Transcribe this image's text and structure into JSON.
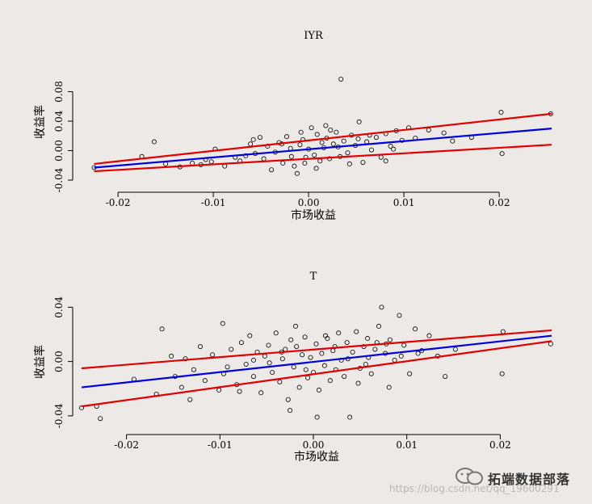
{
  "watermark": {
    "brand": "拓端数据部落",
    "url": "https://blog.csdn.net/qq_19600291"
  },
  "colors": {
    "background": "#ece9e6",
    "fit_line": "#0000dd",
    "band_line": "#e00000",
    "points": "#000000"
  },
  "chart_data": [
    {
      "type": "scatter",
      "title": "IYR",
      "xlabel": "市场收益",
      "ylabel": "收益率",
      "xlim": [
        -0.0245,
        0.0255
      ],
      "ylim": [
        -0.04,
        0.12
      ],
      "xticks": [
        -0.02,
        -0.01,
        0.0,
        0.01,
        0.02
      ],
      "xtick_labels": [
        "-0.02",
        "-0.01",
        "0.00",
        "0.01",
        "0.02"
      ],
      "yticks": [
        -0.04,
        0.0,
        0.04,
        0.08
      ],
      "ytick_labels": [
        "-0.04",
        "0.00",
        "0.04",
        "0.08"
      ],
      "series": [
        {
          "kind": "points",
          "points": [
            [
              -0.0225,
              -0.023
            ],
            [
              -0.0175,
              -0.008
            ],
            [
              -0.0162,
              0.012
            ],
            [
              -0.015,
              -0.018
            ],
            [
              -0.0135,
              -0.022
            ],
            [
              -0.0122,
              -0.017
            ],
            [
              -0.0113,
              -0.019
            ],
            [
              -0.0102,
              -0.015
            ],
            [
              -0.0098,
              0.002
            ],
            [
              -0.0088,
              -0.021
            ],
            [
              -0.0077,
              -0.009
            ],
            [
              -0.0072,
              -0.014
            ],
            [
              -0.0066,
              -0.007
            ],
            [
              -0.0061,
              0.009
            ],
            [
              -0.0056,
              -0.004
            ],
            [
              -0.0051,
              0.018
            ],
            [
              -0.0047,
              -0.011
            ],
            [
              -0.0043,
              0.006
            ],
            [
              -0.0039,
              -0.026
            ],
            [
              -0.0035,
              -0.002
            ],
            [
              -0.0031,
              0.011
            ],
            [
              -0.0027,
              -0.017
            ],
            [
              -0.0023,
              0.019
            ],
            [
              -0.0019,
              0.003
            ],
            [
              -0.0015,
              -0.021
            ],
            [
              -0.0012,
              -0.031
            ],
            [
              -0.0009,
              0.008
            ],
            [
              -0.0006,
              0.015
            ],
            [
              -0.0003,
              -0.009
            ],
            [
              0.0,
              0.002
            ],
            [
              0.0003,
              0.031
            ],
            [
              0.0006,
              -0.006
            ],
            [
              0.0009,
              0.022
            ],
            [
              0.0012,
              -0.014
            ],
            [
              0.0016,
              0.004
            ],
            [
              0.0019,
              0.017
            ],
            [
              0.0022,
              -0.011
            ],
            [
              0.0026,
              0.009
            ],
            [
              0.0029,
              0.025
            ],
            [
              0.0033,
              -0.008
            ],
            [
              0.0034,
              0.097
            ],
            [
              0.0037,
              0.013
            ],
            [
              0.0041,
              -0.003
            ],
            [
              0.0045,
              0.021
            ],
            [
              0.0049,
              0.007
            ],
            [
              0.0053,
              0.039
            ],
            [
              0.0057,
              -0.016
            ],
            [
              0.0061,
              0.012
            ],
            [
              0.0066,
              0.001
            ],
            [
              0.0071,
              0.018
            ],
            [
              0.0076,
              -0.009
            ],
            [
              0.0081,
              0.023
            ],
            [
              0.0086,
              0.006
            ],
            [
              0.0092,
              0.027
            ],
            [
              0.0098,
              0.014
            ],
            [
              0.0105,
              0.031
            ],
            [
              0.0112,
              0.017
            ],
            [
              0.0126,
              0.028
            ],
            [
              0.0142,
              0.024
            ],
            [
              0.0151,
              0.013
            ],
            [
              0.0171,
              0.018
            ],
            [
              0.0202,
              0.052
            ],
            [
              0.0203,
              -0.004
            ],
            [
              0.0254,
              0.05
            ],
            [
              -0.0058,
              0.015
            ],
            [
              -0.0018,
              -0.008
            ],
            [
              0.0008,
              -0.024
            ],
            [
              0.0023,
              0.028
            ],
            [
              0.0043,
              -0.018
            ],
            [
              0.0081,
              -0.014
            ],
            [
              -0.0028,
              0.009
            ],
            [
              -0.0008,
              0.025
            ],
            [
              0.0014,
              0.011
            ],
            [
              0.0031,
              0.005
            ],
            [
              0.0052,
              0.016
            ],
            [
              -0.0108,
              -0.012
            ],
            [
              -0.0004,
              -0.017
            ],
            [
              0.0018,
              0.034
            ],
            [
              0.0064,
              0.021
            ],
            [
              0.0089,
              0.002
            ]
          ]
        },
        {
          "kind": "fit",
          "from": [
            -0.0225,
            -0.023
          ],
          "to": [
            0.0255,
            0.03
          ]
        },
        {
          "kind": "upper",
          "from": [
            -0.0225,
            -0.018
          ],
          "to": [
            0.0255,
            0.05
          ]
        },
        {
          "kind": "lower",
          "from": [
            -0.0225,
            -0.028
          ],
          "to": [
            0.0255,
            0.008
          ]
        }
      ]
    },
    {
      "type": "scatter",
      "title": "T",
      "xlabel": "市场收益",
      "ylabel": "收益率",
      "xlim": [
        -0.0255,
        0.0255
      ],
      "ylim": [
        -0.049,
        0.042
      ],
      "xticks": [
        -0.02,
        -0.01,
        0.0,
        0.01,
        0.02
      ],
      "xtick_labels": [
        "-0.02",
        "-0.01",
        "0.00",
        "0.01",
        "0.02"
      ],
      "yticks": [
        -0.04,
        0.0,
        0.04
      ],
      "ytick_labels": [
        "-0.04",
        "0.00",
        "0.04"
      ],
      "series": [
        {
          "kind": "points",
          "points": [
            [
              -0.0248,
              -0.034
            ],
            [
              -0.0232,
              -0.033
            ],
            [
              -0.0228,
              -0.042
            ],
            [
              -0.0192,
              -0.013
            ],
            [
              -0.0162,
              0.024
            ],
            [
              -0.0148,
              -0.011
            ],
            [
              -0.0141,
              -0.019
            ],
            [
              -0.0137,
              0.002
            ],
            [
              -0.0132,
              -0.028
            ],
            [
              -0.0128,
              -0.006
            ],
            [
              -0.0121,
              0.011
            ],
            [
              -0.0116,
              -0.014
            ],
            [
              -0.0108,
              0.005
            ],
            [
              -0.0101,
              -0.021
            ],
            [
              -0.0097,
              0.028
            ],
            [
              -0.0092,
              -0.004
            ],
            [
              -0.0088,
              0.009
            ],
            [
              -0.0082,
              -0.017
            ],
            [
              -0.0077,
              0.014
            ],
            [
              -0.0072,
              -0.002
            ],
            [
              -0.0068,
              0.019
            ],
            [
              -0.0064,
              -0.011
            ],
            [
              -0.006,
              0.007
            ],
            [
              -0.0056,
              -0.023
            ],
            [
              -0.0052,
              0.004
            ],
            [
              -0.0048,
              0.012
            ],
            [
              -0.0044,
              -0.008
            ],
            [
              -0.004,
              0.021
            ],
            [
              -0.0036,
              -0.015
            ],
            [
              -0.0033,
              0.002
            ],
            [
              -0.003,
              0.009
            ],
            [
              -0.0027,
              -0.028
            ],
            [
              -0.0024,
              0.016
            ],
            [
              -0.0021,
              -0.004
            ],
            [
              -0.0018,
              0.011
            ],
            [
              -0.0015,
              -0.019
            ],
            [
              -0.0012,
              0.005
            ],
            [
              -0.0009,
              0.018
            ],
            [
              -0.0006,
              -0.012
            ],
            [
              -0.0003,
              0.003
            ],
            [
              0.0,
              -0.008
            ],
            [
              0.0003,
              0.013
            ],
            [
              0.0006,
              -0.021
            ],
            [
              0.0009,
              0.006
            ],
            [
              0.0012,
              -0.003
            ],
            [
              0.0015,
              0.017
            ],
            [
              0.0018,
              -0.014
            ],
            [
              0.0021,
              0.008
            ],
            [
              0.0024,
              -0.006
            ],
            [
              0.0027,
              0.021
            ],
            [
              0.003,
              0.001
            ],
            [
              0.0033,
              -0.011
            ],
            [
              0.0036,
              0.014
            ],
            [
              0.0039,
              -0.041
            ],
            [
              0.0042,
              0.007
            ],
            [
              0.0046,
              0.022
            ],
            [
              0.005,
              -0.005
            ],
            [
              0.0054,
              0.011
            ],
            [
              0.0058,
              0.017
            ],
            [
              0.0062,
              -0.009
            ],
            [
              0.0066,
              0.009
            ],
            [
              0.007,
              0.026
            ],
            [
              0.0073,
              0.04
            ],
            [
              0.0077,
              0.006
            ],
            [
              0.0082,
              0.016
            ],
            [
              0.0087,
              0.001
            ],
            [
              0.0092,
              0.034
            ],
            [
              0.0097,
              0.012
            ],
            [
              0.0103,
              -0.009
            ],
            [
              0.0109,
              0.024
            ],
            [
              0.0116,
              0.008
            ],
            [
              0.0124,
              0.019
            ],
            [
              0.0133,
              0.004
            ],
            [
              0.0141,
              -0.011
            ],
            [
              0.0152,
              0.009
            ],
            [
              0.0203,
              0.022
            ],
            [
              0.0202,
              -0.009
            ],
            [
              0.0254,
              0.013
            ],
            [
              -0.0168,
              -0.024
            ],
            [
              -0.0152,
              0.004
            ],
            [
              -0.0079,
              -0.022
            ],
            [
              -0.0025,
              -0.036
            ],
            [
              0.0004,
              -0.041
            ],
            [
              0.0048,
              -0.016
            ],
            [
              0.0081,
              -0.019
            ],
            [
              0.0112,
              0.006
            ],
            [
              -0.0047,
              -0.001
            ],
            [
              -0.0019,
              0.026
            ],
            [
              0.0023,
              0.011
            ],
            [
              0.0059,
              0.003
            ],
            [
              0.0078,
              0.013
            ],
            [
              0.0094,
              0.004
            ],
            [
              -0.0096,
              -0.009
            ],
            [
              -0.0034,
              0.007
            ],
            [
              0.0013,
              0.019
            ],
            [
              0.0056,
              -0.002
            ],
            [
              -0.0064,
              0.001
            ],
            [
              -0.0008,
              -0.006
            ],
            [
              0.0037,
              0.002
            ],
            [
              0.0068,
              0.014
            ]
          ]
        },
        {
          "kind": "fit",
          "from": [
            -0.0248,
            -0.019
          ],
          "to": [
            0.0255,
            0.019
          ]
        },
        {
          "kind": "upper",
          "from": [
            -0.0248,
            -0.005
          ],
          "to": [
            0.0255,
            0.023
          ]
        },
        {
          "kind": "lower",
          "from": [
            -0.0248,
            -0.033
          ],
          "to": [
            0.0255,
            0.015
          ]
        }
      ]
    }
  ]
}
